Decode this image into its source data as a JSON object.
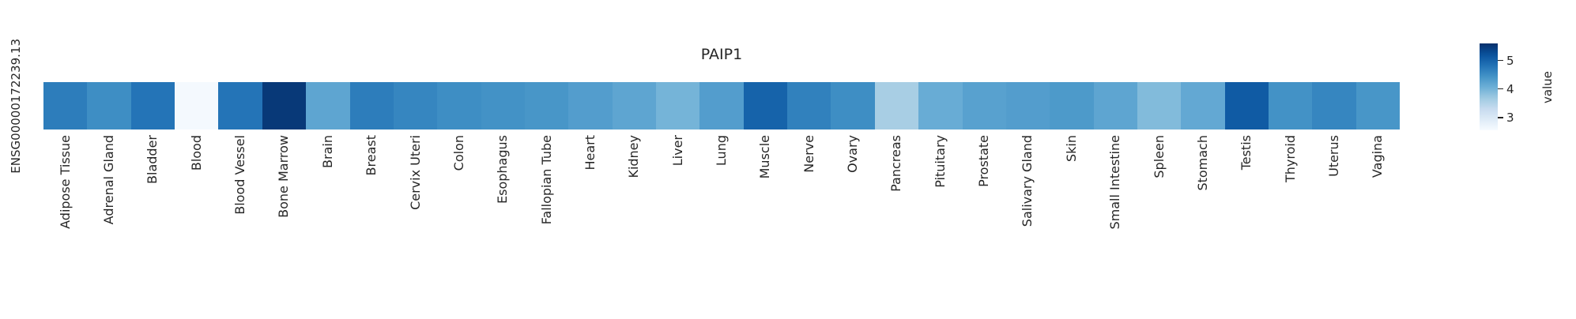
{
  "chart_data": {
    "type": "heatmap",
    "title": "PAIP1",
    "rows": [
      "ENSG00000172239.13"
    ],
    "categories": [
      "Adipose Tissue",
      "Adrenal Gland",
      "Bladder",
      "Blood",
      "Blood Vessel",
      "Bone Marrow",
      "Brain",
      "Breast",
      "Cervix Uteri",
      "Colon",
      "Esophagus",
      "Fallopian Tube",
      "Heart",
      "Kidney",
      "Liver",
      "Lung",
      "Muscle",
      "Nerve",
      "Ovary",
      "Pancreas",
      "Pituitary",
      "Prostate",
      "Salivary Gland",
      "Skin",
      "Small Intestine",
      "Spleen",
      "Stomach",
      "Testis",
      "Thyroid",
      "Uterus",
      "Vagina"
    ],
    "values": [
      4.7,
      4.5,
      4.8,
      2.6,
      4.8,
      5.5,
      4.2,
      4.7,
      4.6,
      4.5,
      4.45,
      4.4,
      4.3,
      4.2,
      4.0,
      4.3,
      5.0,
      4.65,
      4.5,
      3.6,
      4.1,
      4.25,
      4.3,
      4.35,
      4.2,
      3.9,
      4.15,
      5.1,
      4.45,
      4.6,
      4.4
    ],
    "vmin": 2.55,
    "vmax": 5.6,
    "colormap": "Blues",
    "grid": false,
    "legend_position": "right",
    "colorbar": {
      "label": "value",
      "ticks": [
        5,
        4,
        3
      ]
    }
  },
  "colors": {
    "background": "#ffffff",
    "text": "#262626",
    "blues_low": "#f7fbff",
    "blues_high": "#08306b"
  }
}
